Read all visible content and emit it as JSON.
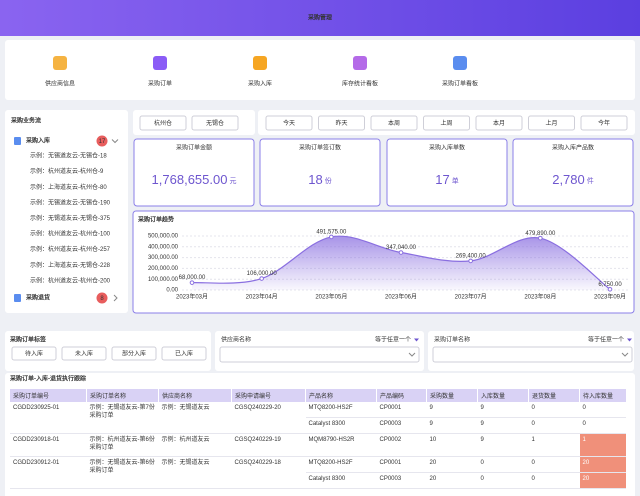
{
  "header": {
    "title": "采购管理"
  },
  "nav": [
    "供应商信息",
    "采购订单",
    "采购入库",
    "库存统计看板",
    "采购订单看板"
  ],
  "workflow": {
    "title": "采购业务流",
    "inbound": {
      "label": "采购入库",
      "count": 17,
      "items": [
        "示例：无锡道友云-无锡仓-18",
        "示例：杭州道友云-杭州仓-9",
        "示例：上海道友云-杭州仓-80",
        "示例：无锡道友云-无锡仓-190",
        "示例：无锡道友云-无锡仓-375",
        "示例：杭州道友云-杭州仓-100",
        "示例：杭州道友云-杭州仓-257",
        "示例：上海道友云-无锡仓-228",
        "示例：杭州道友云-杭州仓-200"
      ]
    },
    "returns": {
      "label": "采购退货",
      "count": 8
    }
  },
  "warehouses": [
    "杭州仓",
    "无锡仓"
  ],
  "periods": [
    "今天",
    "昨天",
    "本周",
    "上周",
    "本月",
    "上月",
    "今年"
  ],
  "kpis": [
    {
      "label": "采购订单金额",
      "value": "1,768,655.00",
      "unit": "元"
    },
    {
      "label": "采购订单签订数",
      "value": "18",
      "unit": "份"
    },
    {
      "label": "采购入库单数",
      "value": "17",
      "unit": "单"
    },
    {
      "label": "采购入库产品数",
      "value": "2,780",
      "unit": "件"
    }
  ],
  "chart_data": {
    "type": "line",
    "title": "采购订单趋势",
    "area": true,
    "color": "#8a6fe0",
    "categories": [
      "2023年03月",
      "2023年04月",
      "2023年05月",
      "2023年06月",
      "2023年07月",
      "2023年08月",
      "2023年09月"
    ],
    "values": [
      68000,
      106000,
      491575,
      347040,
      269400,
      479890,
      6750
    ],
    "value_labels": [
      "68,000.00",
      "106,000.00",
      "491,575.00",
      "347,040.00",
      "269,400.00",
      "479,890.00",
      "6,750.00"
    ],
    "ylim": [
      0,
      500000
    ],
    "yticks": [
      {
        "value": 0,
        "label": "0.00"
      },
      {
        "value": 100000,
        "label": "100,000.00"
      },
      {
        "value": 200000,
        "label": "200,000.00"
      },
      {
        "value": 300000,
        "label": "300,000.00"
      },
      {
        "value": 400000,
        "label": "400,000.00"
      },
      {
        "value": 500000,
        "label": "500,000.00"
      }
    ],
    "grid": true
  },
  "filters": {
    "tags": {
      "title": "采购订单标签",
      "options": [
        "待入库",
        "未入库",
        "部分入库",
        "已入库"
      ]
    },
    "supplier": {
      "label": "供应商名称",
      "operator": "等于任意一个"
    },
    "order": {
      "label": "采购订单名称",
      "operator": "等于任意一个"
    }
  },
  "table": {
    "title": "采购订单-入库-退货执行跟踪",
    "columns": [
      "采购订单编号",
      "采购订单名称",
      "供应商名称",
      "采购申请编号",
      "产品名称",
      "产品编码",
      "采购数量",
      "入库数量",
      "退货数量",
      "待入库数量"
    ],
    "rows": [
      {
        "cells": [
          "CGDD230925-01",
          "示例：无锡道友云-第7份采购订单",
          "示例：无锡道友云",
          "CGSQ240229-20"
        ],
        "lines": [
          [
            "MTQ8200-HS2F",
            "CP0001",
            9,
            9,
            0,
            0
          ],
          [
            "Catalyst 8300",
            "CP0003",
            9,
            9,
            0,
            0
          ]
        ]
      },
      {
        "cells": [
          "CGDD230918-01",
          "示例：杭州道友云-第6份采购订单",
          "示例：杭州道友云",
          "CGSQ240229-19"
        ],
        "lines": [
          [
            "MQM8790-HS2R",
            "CP0002",
            10,
            9,
            1,
            1
          ]
        ]
      },
      {
        "cells": [
          "CGDD230912-01",
          "示例：无锡道友云-第6份采购订单",
          "示例：无锡道友云",
          "CGSQ240229-18"
        ],
        "lines": [
          [
            "MTQ8200-HS2F",
            "CP0001",
            20,
            0,
            0,
            20
          ],
          [
            "Catalyst 8300",
            "CP0003",
            20,
            0,
            0,
            20
          ]
        ]
      }
    ]
  }
}
